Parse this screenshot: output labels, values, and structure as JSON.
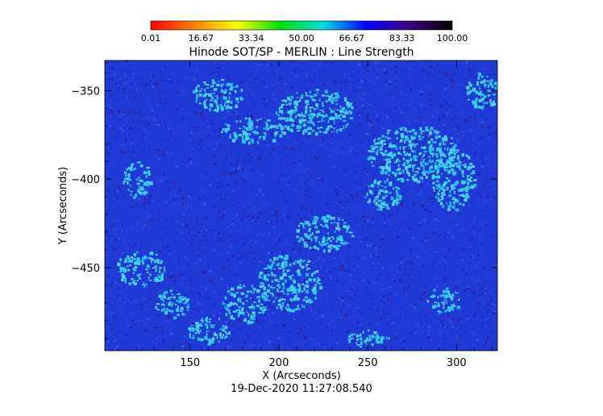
{
  "chart_data": {
    "type": "heatmap",
    "title": "Hinode SOT/SP - MERLIN : Line Strength",
    "xlabel": "X (Arcseconds)",
    "ylabel": "Y (Arcseconds)",
    "x_ticks": [
      150,
      200,
      250,
      300
    ],
    "y_ticks": [
      -350,
      -400,
      -450
    ],
    "xlim": [
      102,
      323
    ],
    "ylim": [
      -497,
      -333
    ],
    "colorbar": {
      "min": 0.01,
      "max": 100.0,
      "tick_labels": [
        "0.01",
        "16.67",
        "33.34",
        "50.00",
        "66.67",
        "83.33",
        "100.00"
      ],
      "colormap": [
        "#ff0000",
        "#ff8000",
        "#ffff00",
        "#00e000",
        "#00e0e0",
        "#0000ff",
        "#400080",
        "#000000"
      ]
    },
    "colors": {
      "base": "#1f3ad6",
      "bright": "#33ccee",
      "dark": "#3a1a8a"
    },
    "bright_regions": [
      {
        "x": 165,
        "y": -352,
        "rx": 14,
        "ry": 9
      },
      {
        "x": 220,
        "y": -362,
        "rx": 22,
        "ry": 13
      },
      {
        "x": 185,
        "y": -372,
        "rx": 18,
        "ry": 7
      },
      {
        "x": 275,
        "y": -385,
        "rx": 26,
        "ry": 16
      },
      {
        "x": 298,
        "y": -400,
        "rx": 12,
        "ry": 18
      },
      {
        "x": 258,
        "y": -408,
        "rx": 10,
        "ry": 9
      },
      {
        "x": 314,
        "y": -350,
        "rx": 9,
        "ry": 11
      },
      {
        "x": 225,
        "y": -430,
        "rx": 16,
        "ry": 10
      },
      {
        "x": 205,
        "y": -458,
        "rx": 18,
        "ry": 16
      },
      {
        "x": 180,
        "y": -470,
        "rx": 12,
        "ry": 11
      },
      {
        "x": 122,
        "y": -450,
        "rx": 14,
        "ry": 10
      },
      {
        "x": 140,
        "y": -470,
        "rx": 10,
        "ry": 8
      },
      {
        "x": 160,
        "y": -485,
        "rx": 12,
        "ry": 8
      },
      {
        "x": 120,
        "y": -400,
        "rx": 8,
        "ry": 10
      },
      {
        "x": 292,
        "y": -468,
        "rx": 10,
        "ry": 7
      },
      {
        "x": 250,
        "y": -490,
        "rx": 12,
        "ry": 5
      }
    ]
  },
  "footer": {
    "timestamp": "19-Dec-2020 11:27:08.540"
  }
}
